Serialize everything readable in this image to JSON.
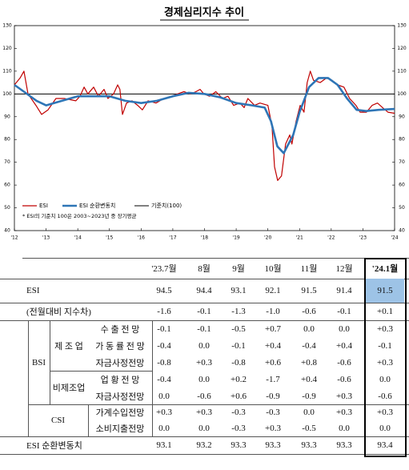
{
  "chart_data": {
    "type": "line",
    "title": "경제심리지수 추이",
    "xlim": [
      2012,
      2024
    ],
    "xticks": [
      {
        "value": 2012,
        "label": "'12"
      },
      {
        "value": 2013,
        "label": "'13"
      },
      {
        "value": 2014,
        "label": "'14"
      },
      {
        "value": 2015,
        "label": "'15"
      },
      {
        "value": 2016,
        "label": "'16"
      },
      {
        "value": 2017,
        "label": "'17"
      },
      {
        "value": 2018,
        "label": "'18"
      },
      {
        "value": 2019,
        "label": "'19"
      },
      {
        "value": 2020,
        "label": "'20"
      },
      {
        "value": 2021,
        "label": "'21"
      },
      {
        "value": 2022,
        "label": "'22"
      },
      {
        "value": 2023,
        "label": "'23"
      },
      {
        "value": 2024,
        "label": "'24"
      }
    ],
    "ylim": [
      40,
      130
    ],
    "yticks": [
      40,
      50,
      60,
      70,
      80,
      90,
      100,
      110,
      120,
      130
    ],
    "series": [
      {
        "name": "ESI",
        "color": "#c00000",
        "x": [
          2012.0,
          2012.18,
          2012.3,
          2012.43,
          2012.68,
          2012.86,
          2013.06,
          2013.31,
          2013.57,
          2013.94,
          2014.07,
          2014.2,
          2014.32,
          2014.5,
          2014.65,
          2014.83,
          2014.95,
          2015.13,
          2015.26,
          2015.33,
          2015.41,
          2015.54,
          2015.71,
          2015.89,
          2016.04,
          2016.22,
          2016.47,
          2016.72,
          2016.97,
          2017.15,
          2017.35,
          2017.56,
          2017.73,
          2017.86,
          2017.98,
          2018.16,
          2018.36,
          2018.57,
          2018.74,
          2018.92,
          2019.12,
          2019.25,
          2019.37,
          2019.58,
          2019.75,
          2020.0,
          2020.13,
          2020.21,
          2020.31,
          2020.43,
          2020.56,
          2020.69,
          2020.76,
          2020.89,
          2021.02,
          2021.14,
          2021.24,
          2021.34,
          2021.44,
          2021.65,
          2021.85,
          2022.03,
          2022.2,
          2022.4,
          2022.58,
          2022.78,
          2022.91,
          2023.11,
          2023.29,
          2023.46,
          2023.62,
          2023.79,
          2024.0
        ],
        "values": [
          104,
          107,
          110,
          100,
          95,
          91,
          93,
          98,
          98,
          97,
          99,
          103,
          100,
          103,
          99,
          102,
          98,
          100,
          104,
          102,
          91,
          96,
          97,
          95,
          93,
          97,
          96,
          98,
          99,
          100,
          101,
          100,
          101,
          102,
          100,
          99,
          101,
          98,
          99,
          95,
          96,
          94,
          98,
          95,
          96,
          95,
          86,
          68,
          62,
          64,
          78,
          82,
          78,
          88,
          95,
          92,
          105,
          110,
          106,
          105,
          107,
          106,
          104,
          103,
          98,
          95,
          92,
          92,
          95,
          96,
          94,
          92,
          91.5
        ]
      },
      {
        "name": "ESI 순환변동치",
        "color": "#2e75b6",
        "x": [
          2012.0,
          2012.3,
          2012.7,
          2013.0,
          2013.5,
          2014.0,
          2014.5,
          2015.0,
          2015.5,
          2016.0,
          2016.5,
          2017.0,
          2017.5,
          2018.0,
          2018.5,
          2019.0,
          2019.5,
          2019.9,
          2020.1,
          2020.3,
          2020.5,
          2020.8,
          2021.0,
          2021.3,
          2021.6,
          2021.9,
          2022.2,
          2022.5,
          2022.8,
          2023.1,
          2023.5,
          2024.0
        ],
        "values": [
          104,
          101,
          97,
          95,
          97,
          99,
          99,
          99,
          97,
          96,
          97,
          99,
          100.5,
          100,
          98.5,
          96,
          95,
          94,
          88,
          77,
          74,
          82,
          92,
          103,
          107,
          107,
          104,
          98,
          93,
          92.5,
          93,
          93.4
        ]
      }
    ],
    "reference": {
      "name": "기준치(100)",
      "value": 100,
      "color": "#000000"
    },
    "legend": "lower left",
    "note": "* ESI의 기준치 100은 2003~2023년 중 장기평균"
  },
  "table": {
    "columns": [
      "'23.7월",
      "8월",
      "9월",
      "10월",
      "11월",
      "12월",
      "'24.1월"
    ],
    "rows": [
      {
        "label": "ESI",
        "values": [
          "94.5",
          "94.4",
          "93.1",
          "92.1",
          "91.5",
          "91.4",
          "91.5"
        ]
      },
      {
        "label": "(전월대비 지수차)",
        "values": [
          "-1.6",
          "-0.1",
          "-1.3",
          "-1.0",
          "-0.6",
          "-0.1",
          "+0.1"
        ]
      },
      {
        "label": "BSI",
        "subgroups": [
          {
            "label": "제 조 업",
            "rows": [
              {
                "label": "수 출 전 망",
                "values": [
                  "-0.1",
                  "-0.1",
                  "-0.5",
                  "+0.7",
                  "0.0",
                  "0.0",
                  "+0.3"
                ]
              },
              {
                "label": "가 동 률 전 망",
                "values": [
                  "-0.4",
                  "0.0",
                  "-0.1",
                  "+0.4",
                  "-0.4",
                  "+0.4",
                  "-0.1"
                ]
              },
              {
                "label": "자금사정전망",
                "values": [
                  "-0.8",
                  "+0.3",
                  "-0.8",
                  "+0.6",
                  "+0.8",
                  "-0.6",
                  "+0.3"
                ]
              }
            ]
          },
          {
            "label": "비제조업",
            "rows": [
              {
                "label": "업 황 전 망",
                "values": [
                  "-0.4",
                  "0.0",
                  "+0.2",
                  "-1.7",
                  "+0.4",
                  "-0.6",
                  "0.0"
                ]
              },
              {
                "label": "자금사정전망",
                "values": [
                  "0.0",
                  "-0.6",
                  "+0.6",
                  "-0.9",
                  "-0.9",
                  "+0.3",
                  "-0.6"
                ]
              }
            ]
          }
        ]
      },
      {
        "label": "CSI",
        "rows": [
          {
            "label": "가계수입전망",
            "values": [
              "+0.3",
              "+0.3",
              "-0.3",
              "-0.3",
              "0.0",
              "+0.3",
              "+0.3"
            ]
          },
          {
            "label": "소비지출전망",
            "values": [
              "0.0",
              "0.0",
              "-0.3",
              "+0.3",
              "-0.5",
              "0.0",
              "0.0"
            ]
          }
        ]
      },
      {
        "label": "ESI 순환변동치",
        "values": [
          "93.1",
          "93.2",
          "93.3",
          "93.3",
          "93.3",
          "93.3",
          "93.4"
        ]
      }
    ]
  }
}
